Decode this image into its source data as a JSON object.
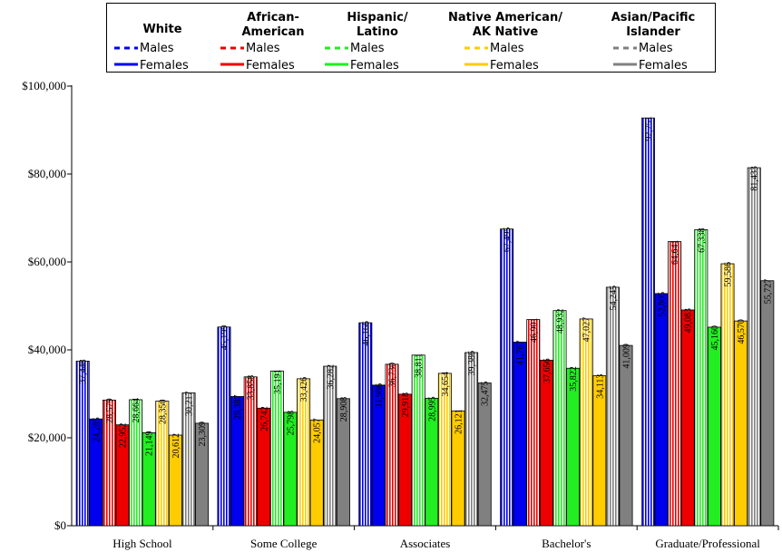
{
  "chart_data": {
    "type": "bar",
    "categories": [
      "High School",
      "Some College",
      "Associates",
      "Bachelor's",
      "Graduate/Professional"
    ],
    "ylim": [
      0,
      100000
    ],
    "y_ticks": [
      "$0",
      "$20,000",
      "$40,000",
      "$60,000",
      "$80,000",
      "$100,000"
    ],
    "y_tick_values": [
      0,
      20000,
      40000,
      60000,
      80000,
      100000
    ],
    "legend_position": "top",
    "legend_groups": [
      {
        "title_lines": [
          "White"
        ],
        "color": "#0000ee",
        "male_label": "Males",
        "female_label": "Females"
      },
      {
        "title_lines": [
          "African-",
          "American"
        ],
        "color": "#ee0000",
        "male_label": "Males",
        "female_label": "Females"
      },
      {
        "title_lines": [
          "Hispanic/",
          "Latino"
        ],
        "color": "#22ee22",
        "male_label": "Males",
        "female_label": "Females"
      },
      {
        "title_lines": [
          "Native American/",
          "AK Native"
        ],
        "color": "#ffcc00",
        "male_label": "Males",
        "female_label": "Females"
      },
      {
        "title_lines": [
          "Asian/Pacific",
          "Islander"
        ],
        "color": "#808080",
        "male_label": "Males",
        "female_label": "Females"
      }
    ],
    "series": [
      {
        "group": "White",
        "sex": "Males",
        "color": "#0000ee",
        "pattern": "striped",
        "values": [
          37448,
          45199,
          46166,
          67495,
          92751
        ],
        "labels": [
          "37,448",
          "45,199",
          "46,166",
          "67,495",
          "92,751"
        ]
      },
      {
        "group": "White",
        "sex": "Females",
        "color": "#0000ee",
        "pattern": "solid",
        "values": [
          24285,
          29387,
          31986,
          41767,
          52805
        ],
        "labels": [
          "24,285",
          "29,387",
          "31,986",
          "41,767",
          "52,805"
        ]
      },
      {
        "group": "African-American",
        "sex": "Males",
        "color": "#ee0000",
        "pattern": "striped",
        "values": [
          28579,
          33858,
          36730,
          46901,
          64641
        ],
        "labels": [
          "28,579",
          "33,858",
          "36,730",
          "46,901",
          "64,641"
        ]
      },
      {
        "group": "African-American",
        "sex": "Females",
        "color": "#ee0000",
        "pattern": "solid",
        "values": [
          22952,
          26742,
          29918,
          37656,
          49083
        ],
        "labels": [
          "22,952",
          "26,742",
          "29,918",
          "37,656",
          "49,083"
        ]
      },
      {
        "group": "Hispanic/Latino",
        "sex": "Males",
        "color": "#22ee22",
        "pattern": "striped",
        "values": [
          28664,
          35191,
          38811,
          48932,
          67338
        ],
        "labels": [
          "28,664",
          "35,191",
          "38,811",
          "48,932",
          "67,338"
        ]
      },
      {
        "group": "Hispanic/Latino",
        "sex": "Females",
        "color": "#22ee22",
        "pattern": "solid",
        "values": [
          21149,
          25798,
          28995,
          35822,
          45160
        ],
        "labels": [
          "21,149",
          "25,798",
          "28,995",
          "35,822",
          "45,160"
        ]
      },
      {
        "group": "Native American/AK Native",
        "sex": "Males",
        "color": "#ffcc00",
        "pattern": "striped",
        "values": [
          28350,
          33426,
          34654,
          47027,
          59586
        ],
        "labels": [
          "28,350",
          "33,426",
          "34,654",
          "47,027",
          "59,586"
        ]
      },
      {
        "group": "Native American/AK Native",
        "sex": "Females",
        "color": "#ffcc00",
        "pattern": "solid",
        "values": [
          20612,
          24057,
          26121,
          34113,
          46570
        ],
        "labels": [
          "20,612",
          "24,057",
          "26,121",
          "34,113",
          "46,570"
        ]
      },
      {
        "group": "Asian/Pacific Islander",
        "sex": "Males",
        "color": "#808080",
        "pattern": "striped",
        "values": [
          30217,
          36282,
          39386,
          54245,
          81433
        ],
        "labels": [
          "30,217",
          "36,282",
          "39,386",
          "54,245",
          "81,433"
        ]
      },
      {
        "group": "Asian/Pacific Islander",
        "sex": "Females",
        "color": "#808080",
        "pattern": "solid",
        "values": [
          23309,
          28908,
          32475,
          41009,
          55727
        ],
        "labels": [
          "23,309",
          "28,908",
          "32,475",
          "41,009",
          "55,727"
        ]
      }
    ]
  }
}
